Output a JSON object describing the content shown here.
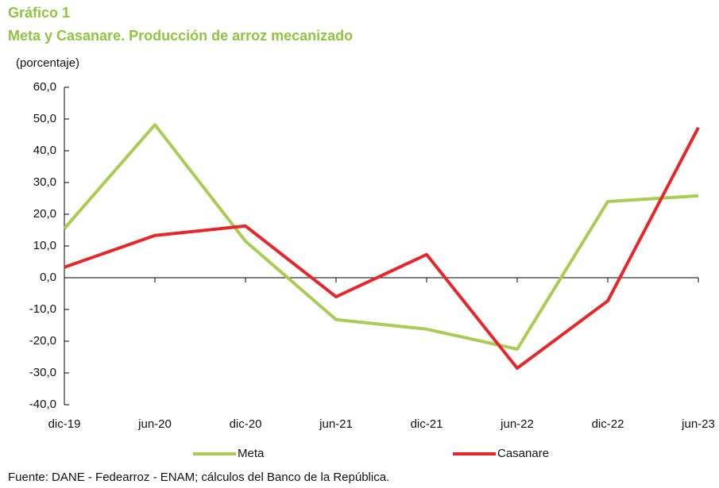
{
  "chart_data": {
    "type": "line",
    "title": "Gráfico 1",
    "subtitle": "Meta y Casanare. Producción de arroz mecanizado",
    "y_label": "(porcentaje)",
    "categories": [
      "dic-19",
      "jun-20",
      "dic-20",
      "jun-21",
      "dic-21",
      "jun-22",
      "dic-22",
      "jun-23"
    ],
    "series": [
      {
        "name": "Meta",
        "color": "#a9cc52",
        "values": [
          15.5,
          48.2,
          11.5,
          -13.2,
          -16.2,
          -22.5,
          24.0,
          25.8
        ]
      },
      {
        "name": "Casanare",
        "color": "#e8262a",
        "values": [
          3.3,
          13.3,
          16.3,
          -6.0,
          7.3,
          -28.5,
          -7.3,
          47.3
        ]
      }
    ],
    "ylim": [
      -40,
      60
    ],
    "yticks": [
      {
        "value": -40,
        "label": "-40,0"
      },
      {
        "value": -30,
        "label": "-30,0"
      },
      {
        "value": -20,
        "label": "-20,0"
      },
      {
        "value": -10,
        "label": "-10,0"
      },
      {
        "value": 0,
        "label": "0,0"
      },
      {
        "value": 10,
        "label": "10,0"
      },
      {
        "value": 20,
        "label": "20,0"
      },
      {
        "value": 30,
        "label": "30,0"
      },
      {
        "value": 40,
        "label": "40,0"
      },
      {
        "value": 50,
        "label": "50,0"
      },
      {
        "value": 60,
        "label": "60,0"
      }
    ],
    "legend": "bottom",
    "source": "Fuente: DANE - Fedearroz - ENAM; cálculos del Banco de la República."
  }
}
